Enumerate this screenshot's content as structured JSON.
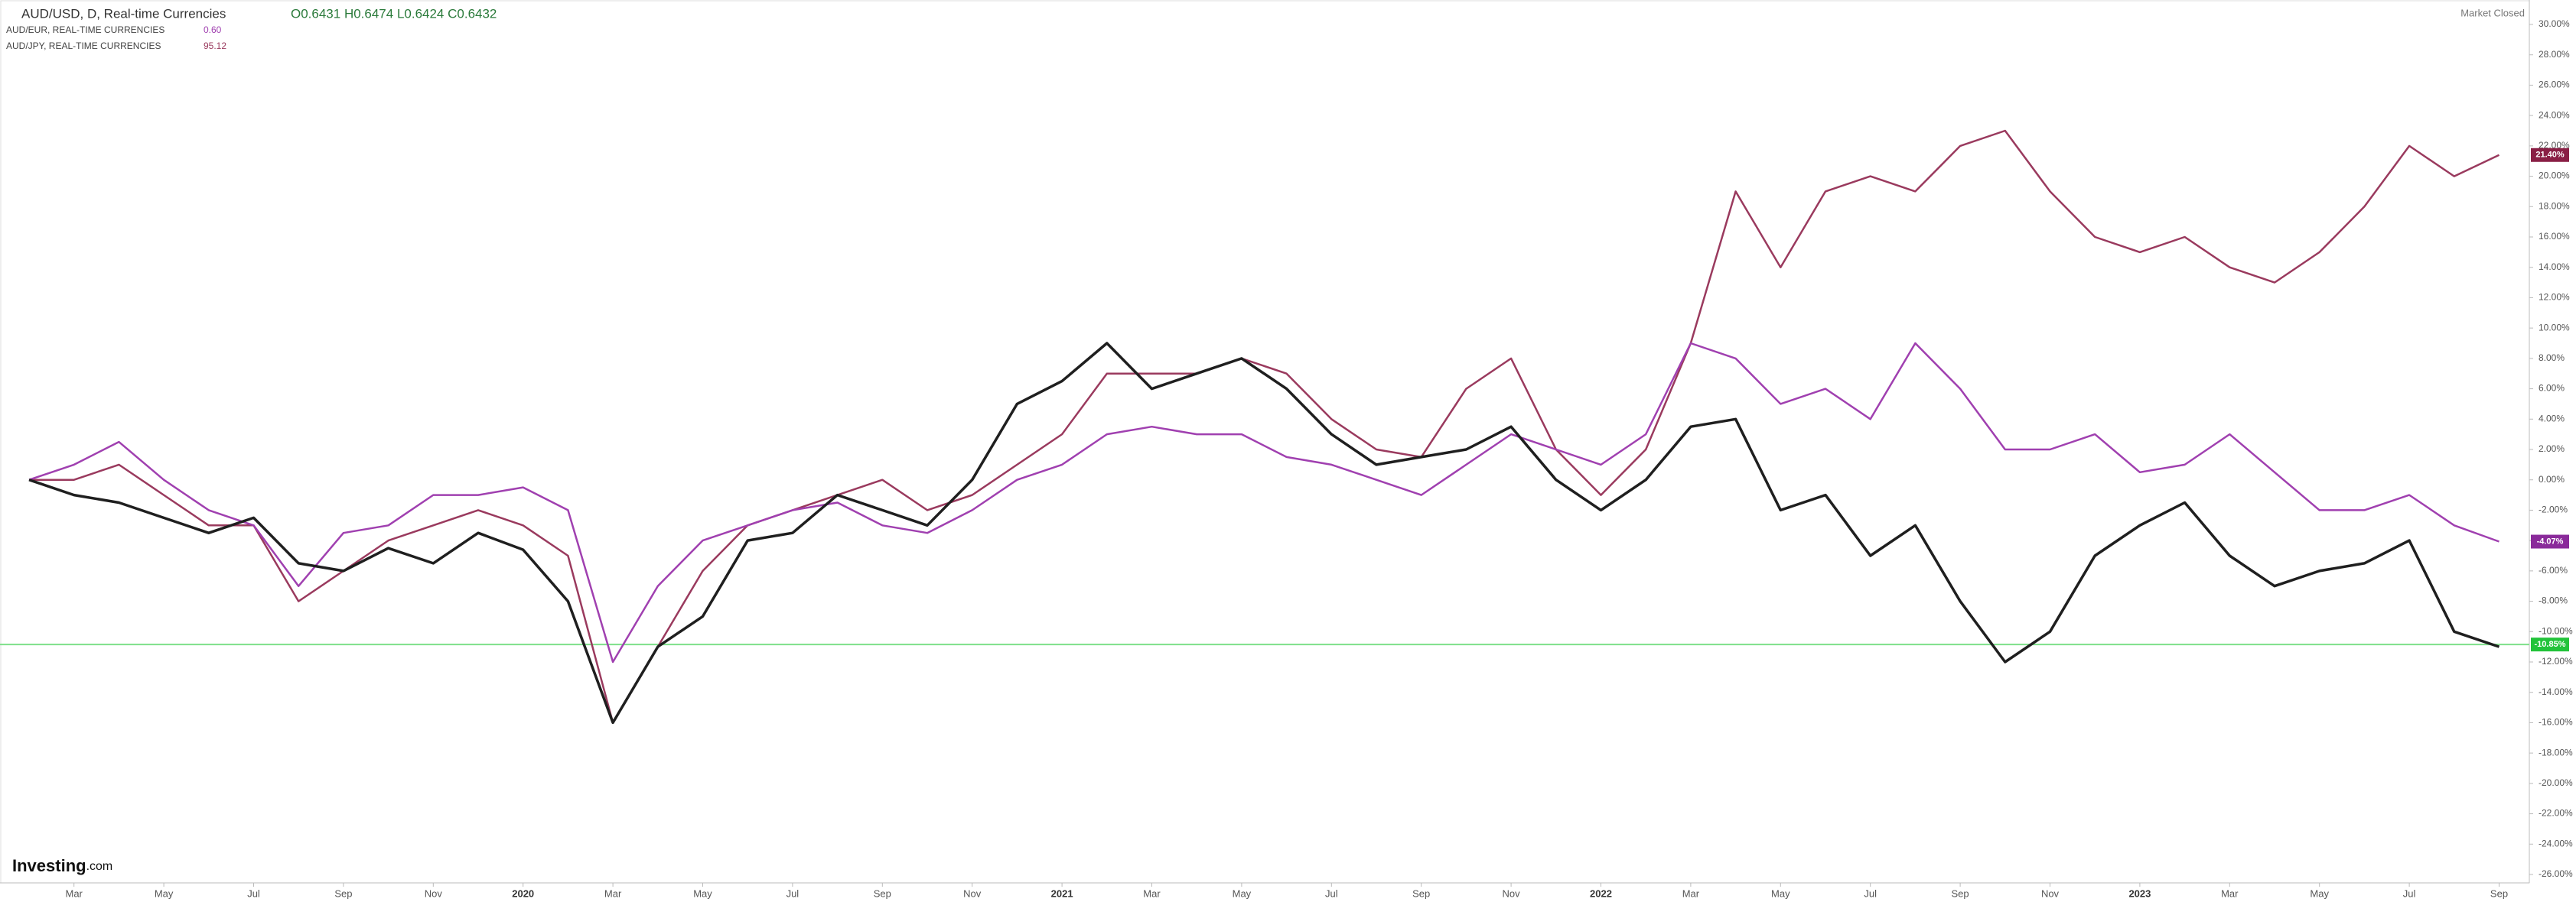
{
  "chart_data": {
    "type": "line",
    "header": {
      "symbol": "AUD/USD, D, Real-time Currencies",
      "ohlc": "O0.6431 H0.6474 L0.6424 C0.6432",
      "status": "Market Closed",
      "logo": "Investing",
      "logo_suffix": ".com"
    },
    "categories": [
      null,
      "Mar",
      null,
      "May",
      null,
      "Jul",
      null,
      "Sep",
      null,
      "Nov",
      null,
      "2020",
      null,
      "Mar",
      null,
      "May",
      null,
      "Jul",
      null,
      "Sep",
      null,
      "Nov",
      null,
      "2021",
      null,
      "Mar",
      null,
      "May",
      null,
      "Jul",
      null,
      "Sep",
      null,
      "Nov",
      null,
      "2022",
      null,
      "Mar",
      null,
      "May",
      null,
      "Jul",
      null,
      "Sep",
      null,
      "Nov",
      null,
      "2023",
      null,
      "Mar",
      null,
      "May",
      null,
      "Jul",
      null,
      "Sep"
    ],
    "series": [
      {
        "name": "AUD/USD, D, Real-time Currencies",
        "color": "#1f1f1f",
        "values": [
          0,
          -1,
          -1.5,
          -2.5,
          -3.5,
          -2.5,
          -5.5,
          -6,
          -4.5,
          -5.5,
          -3.5,
          -4.6,
          -8,
          -16,
          -11,
          -9,
          -4,
          -3.5,
          -1,
          -2,
          -3,
          0,
          5,
          6.5,
          9,
          6,
          7,
          8,
          6,
          3,
          1,
          1.5,
          2,
          3.5,
          0,
          -2,
          0,
          3.5,
          4,
          -2,
          -1,
          -5,
          -3,
          -8,
          -12,
          -10,
          -5,
          -3,
          -1.5,
          -5,
          -7,
          -6,
          -5.5,
          -4,
          -10,
          -11
        ]
      },
      {
        "name": "AUD/EUR, REAL-TIME CURRENCIES",
        "quote": "0.60",
        "color": "#a040b0",
        "values": [
          0,
          1,
          2.5,
          0,
          -2,
          -3,
          -7,
          -3.5,
          -3,
          -1,
          -1,
          -0.5,
          -2,
          -12,
          -7,
          -4,
          -3,
          -2,
          -1.5,
          -3,
          -3.5,
          -2,
          0,
          1,
          3,
          3.5,
          3,
          3,
          1.5,
          1,
          0,
          -1,
          1,
          3,
          2,
          1,
          3,
          9,
          8,
          5,
          6,
          4,
          9,
          6,
          2,
          2,
          3,
          0.5,
          1,
          3,
          0.5,
          -2,
          -2,
          -1,
          -3,
          -4.07
        ]
      },
      {
        "name": "AUD/JPY, REAL-TIME CURRENCIES",
        "quote": "95.12",
        "color": "#9a3a5e",
        "values": [
          0,
          0,
          1,
          -1,
          -3,
          -3,
          -8,
          -6,
          -4,
          -3,
          -2,
          -3,
          -5,
          -16,
          -11,
          -6,
          -3,
          -2,
          -1,
          0,
          -2,
          -1,
          1,
          3,
          7,
          7,
          7,
          8,
          7,
          4,
          2,
          1.5,
          6,
          8,
          2,
          -1,
          2,
          9,
          19,
          14,
          19,
          20,
          19,
          22,
          23,
          19,
          16,
          15,
          16,
          14,
          13,
          15,
          18,
          22,
          20,
          21.4
        ]
      }
    ],
    "ylim": [
      -26,
      30
    ],
    "yticks": [
      {
        "value": 30,
        "label": "30.00%"
      },
      {
        "value": 28,
        "label": "28.00%"
      },
      {
        "value": 26,
        "label": "26.00%"
      },
      {
        "value": 24,
        "label": "24.00%"
      },
      {
        "value": 22,
        "label": "22.00%"
      },
      {
        "value": 20,
        "label": "20.00%"
      },
      {
        "value": 18,
        "label": "18.00%"
      },
      {
        "value": 16,
        "label": "16.00%"
      },
      {
        "value": 14,
        "label": "14.00%"
      },
      {
        "value": 12,
        "label": "12.00%"
      },
      {
        "value": 10,
        "label": "10.00%"
      },
      {
        "value": 8,
        "label": "8.00%"
      },
      {
        "value": 6,
        "label": "6.00%"
      },
      {
        "value": 4,
        "label": "4.00%"
      },
      {
        "value": 2,
        "label": "2.00%"
      },
      {
        "value": 0,
        "label": "0.00%"
      },
      {
        "value": -2,
        "label": "-2.00%"
      },
      {
        "value": -4,
        "label": "-4.00%"
      },
      {
        "value": -6,
        "label": "-6.00%"
      },
      {
        "value": -8,
        "label": "-8.00%"
      },
      {
        "value": -10,
        "label": "-10.00%"
      },
      {
        "value": -12,
        "label": "-12.00%"
      },
      {
        "value": -14,
        "label": "-14.00%"
      },
      {
        "value": -16,
        "label": "-16.00%"
      },
      {
        "value": -18,
        "label": "-18.00%"
      },
      {
        "value": -20,
        "label": "-20.00%"
      },
      {
        "value": -22,
        "label": "-22.00%"
      },
      {
        "value": -24,
        "label": "-24.00%"
      },
      {
        "value": -26,
        "label": "-26.00%"
      }
    ],
    "badges": [
      {
        "value": 21.4,
        "label": "21.40%",
        "color": "#8a1f45"
      },
      {
        "value": -4.07,
        "label": "-4.07%",
        "color": "#8a2a9a"
      },
      {
        "value": -10.85,
        "label": "-10.85%",
        "color": "#22c33a"
      }
    ],
    "price_line": {
      "value": -10.85,
      "color": "#7ee08a"
    },
    "grid": false
  }
}
